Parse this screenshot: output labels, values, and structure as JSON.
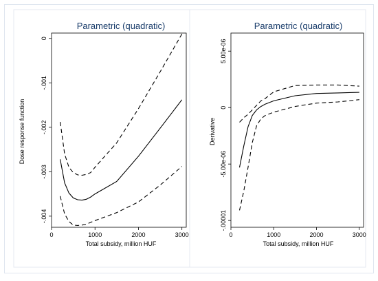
{
  "chart_data": [
    {
      "type": "line",
      "title": "Parametric (quadratic)",
      "xlabel": "Total subsidy, million HUF",
      "ylabel": "Dose response function",
      "xlim": [
        0,
        3100
      ],
      "ylim": [
        -0.00425,
        0.00012
      ],
      "xticks": [
        0,
        1000,
        2000,
        3000
      ],
      "xtick_labels": [
        "0",
        "1000",
        "2000",
        "3000"
      ],
      "yticks": [
        0,
        -0.001,
        -0.002,
        -0.003,
        -0.004
      ],
      "ytick_labels": [
        "0",
        "-.001",
        "-.002",
        "-.003",
        "-.004"
      ],
      "grid": false,
      "series": [
        {
          "style": "solid",
          "x": [
            200,
            300,
            400,
            500,
            600,
            700,
            800,
            900,
            1000,
            1500,
            2000,
            2500,
            3000
          ],
          "y": [
            -0.00272,
            -0.00325,
            -0.00348,
            -0.00359,
            -0.00363,
            -0.00364,
            -0.00362,
            -0.00357,
            -0.0035,
            -0.00322,
            -0.00265,
            -0.00202,
            -0.00138
          ]
        },
        {
          "style": "dashed",
          "x": [
            200,
            300,
            400,
            500,
            600,
            700,
            800,
            900,
            1000,
            1500,
            2000,
            2500,
            3000
          ],
          "y": [
            -0.00188,
            -0.0026,
            -0.0029,
            -0.00302,
            -0.00307,
            -0.00308,
            -0.00306,
            -0.00302,
            -0.0029,
            -0.00235,
            -0.00158,
            -0.00075,
            0.0001
          ]
        },
        {
          "style": "dashed",
          "x": [
            200,
            300,
            400,
            500,
            600,
            700,
            800,
            900,
            1000,
            1500,
            2000,
            2500,
            3000
          ],
          "y": [
            -0.00355,
            -0.00395,
            -0.00412,
            -0.0042,
            -0.00421,
            -0.0042,
            -0.00418,
            -0.00414,
            -0.0041,
            -0.00392,
            -0.00368,
            -0.0033,
            -0.00288
          ]
        }
      ]
    },
    {
      "type": "line",
      "title": "Parametric (quadratic)",
      "xlabel": "Total subsidy, million HUF",
      "ylabel": "Derivative",
      "xlim": [
        0,
        3100
      ],
      "ylim": [
        -1.06e-05,
        6.6e-06
      ],
      "xticks": [
        0,
        1000,
        2000,
        3000
      ],
      "xtick_labels": [
        "0",
        "1000",
        "2000",
        "3000"
      ],
      "yticks": [
        5e-06,
        0,
        -5e-06,
        -1e-05
      ],
      "ytick_labels": [
        "5.00e-06",
        "0",
        "-5.00e-06",
        "-.00001"
      ],
      "grid": false,
      "series": [
        {
          "style": "solid",
          "x": [
            200,
            300,
            400,
            500,
            600,
            700,
            800,
            1000,
            1500,
            2000,
            2500,
            3000
          ],
          "y": [
            -5.3e-06,
            -3.4e-06,
            -1.7e-06,
            -7e-07,
            -2e-07,
            1e-07,
            3e-07,
            6e-07,
            1.05e-06,
            1.25e-06,
            1.3e-06,
            1.35e-06
          ]
        },
        {
          "style": "dashed",
          "x": [
            200,
            300,
            400,
            500,
            600,
            700,
            800,
            1000,
            1500,
            2000,
            2500,
            3000
          ],
          "y": [
            -1.3e-06,
            -9e-07,
            -6e-07,
            -2e-07,
            2e-07,
            6e-07,
            8e-07,
            1.4e-06,
            1.95e-06,
            2e-06,
            2e-06,
            1.9e-06
          ]
        },
        {
          "style": "dashed",
          "x": [
            200,
            300,
            400,
            500,
            600,
            700,
            800,
            1000,
            1500,
            2000,
            2500,
            3000
          ],
          "y": [
            -9.1e-06,
            -7.4e-06,
            -5.3e-06,
            -3.1e-06,
            -1.6e-06,
            -1e-06,
            -7e-07,
            -4e-07,
            1e-07,
            4e-07,
            5e-07,
            7e-07
          ]
        }
      ]
    }
  ]
}
